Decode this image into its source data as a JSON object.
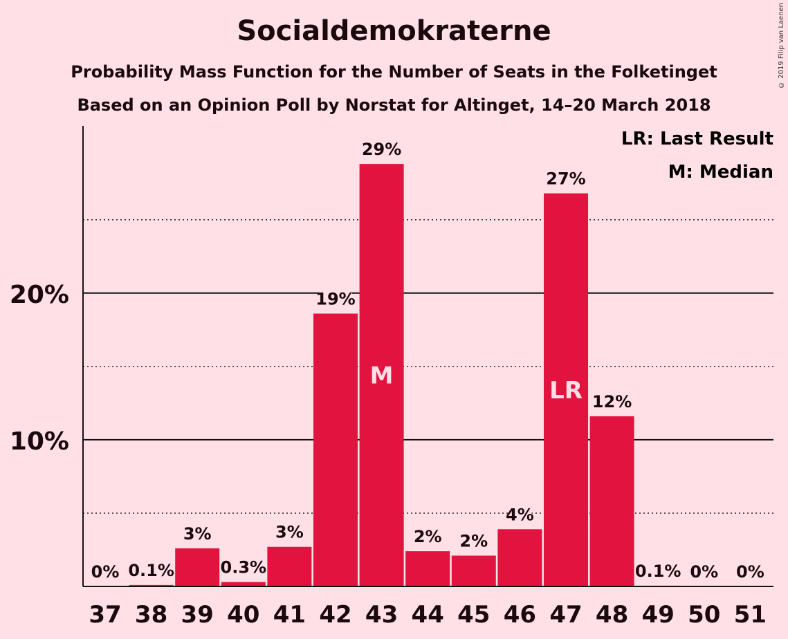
{
  "title": "Socialdemokraterne",
  "subtitle_1": "Probability Mass Function for the Number of Seats in the Folketinget",
  "subtitle_2": "Based on an Opinion Poll by Norstat for Altinget, 14–20 March 2018",
  "copyright": "© 2019 Filip van Laenen",
  "legend": {
    "last_result": "LR: Last Result",
    "median": "M: Median"
  },
  "colors": {
    "background": "#FFE0E6",
    "bar": "#E31340",
    "text": "#1a0a0f",
    "marker_text": "#FFE0E6"
  },
  "chart_data": {
    "type": "bar",
    "categories": [
      "37",
      "38",
      "39",
      "40",
      "41",
      "42",
      "43",
      "44",
      "45",
      "46",
      "47",
      "48",
      "49",
      "50",
      "51"
    ],
    "values": [
      0,
      0.1,
      2.6,
      0.3,
      2.7,
      18.6,
      28.8,
      2.4,
      2.1,
      3.9,
      26.8,
      11.6,
      0.05,
      0,
      0
    ],
    "data_labels": [
      "0%",
      "0.1%",
      "3%",
      "0.3%",
      "3%",
      "19%",
      "29%",
      "2%",
      "2%",
      "4%",
      "27%",
      "12%",
      "0.1%",
      "0%",
      "0%"
    ],
    "markers": {
      "43": "M",
      "47": "LR"
    },
    "ylim": [
      0,
      31.4
    ],
    "yticks": [
      {
        "value": 10,
        "label": "10%",
        "style": "solid"
      },
      {
        "value": 20,
        "label": "20%",
        "style": "solid"
      }
    ],
    "minor_gridlines": [
      5,
      15,
      25
    ],
    "grid": true,
    "legend_position": "top-right"
  }
}
